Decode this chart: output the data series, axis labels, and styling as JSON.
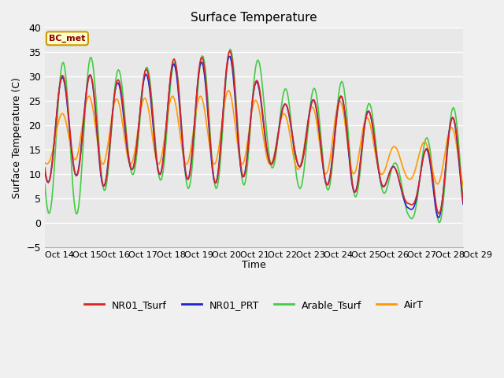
{
  "title": "Surface Temperature",
  "ylabel": "Surface Temperature (C)",
  "xlabel": "Time",
  "annotation": "BC_met",
  "ylim": [
    -5,
    40
  ],
  "yticks": [
    -5,
    0,
    5,
    10,
    15,
    20,
    25,
    30,
    35,
    40
  ],
  "background_color": "#f0f0f0",
  "plot_bg_color": "#e8e8e8",
  "grid_color": "#ffffff",
  "legend_labels": [
    "NR01_Tsurf",
    "NR01_PRT",
    "Arable_Tsurf",
    "AirT"
  ],
  "line_colors": [
    "#dd2222",
    "#2222cc",
    "#44cc44",
    "#ff9900"
  ],
  "xtick_labels": [
    "Oct 14",
    "Oct 15",
    "Oct 16",
    "Oct 17",
    "Oct 18",
    "Oct 19",
    "Oct 20",
    "Oct 21",
    "Oct 22",
    "Oct 23",
    "Oct 24",
    "Oct 25",
    "Oct 26",
    "Oct 27",
    "Oct 28",
    "Oct 29"
  ],
  "figsize": [
    6.4,
    4.8
  ],
  "dpi": 100
}
